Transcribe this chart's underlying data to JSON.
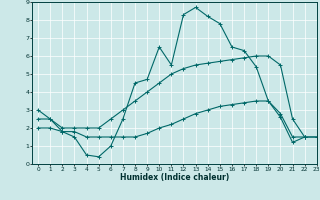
{
  "xlabel": "Humidex (Indice chaleur)",
  "xlim": [
    -0.5,
    23
  ],
  "ylim": [
    0,
    9
  ],
  "xticks": [
    0,
    1,
    2,
    3,
    4,
    5,
    6,
    7,
    8,
    9,
    10,
    11,
    12,
    13,
    14,
    15,
    16,
    17,
    18,
    19,
    20,
    21,
    22,
    23
  ],
  "yticks": [
    0,
    1,
    2,
    3,
    4,
    5,
    6,
    7,
    8,
    9
  ],
  "bg_color": "#cce8e8",
  "line_color": "#006868",
  "grid_color": "#ffffff",
  "line1_x": [
    0,
    1,
    2,
    3,
    4,
    5,
    6,
    7,
    8,
    9,
    10,
    11,
    12,
    13,
    14,
    15,
    16,
    17,
    18,
    19,
    20,
    21,
    22
  ],
  "line1_y": [
    3.0,
    2.5,
    1.8,
    1.5,
    0.5,
    0.4,
    1.0,
    2.5,
    4.5,
    4.7,
    6.5,
    5.5,
    8.3,
    8.7,
    8.2,
    7.8,
    6.5,
    6.3,
    5.4,
    3.5,
    2.6,
    1.2,
    1.5
  ],
  "line2_x": [
    0,
    1,
    2,
    3,
    4,
    5,
    6,
    7,
    8,
    9,
    10,
    11,
    12,
    13,
    14,
    15,
    16,
    17,
    18,
    19,
    20,
    21,
    22,
    23
  ],
  "line2_y": [
    2.0,
    2.0,
    1.8,
    1.8,
    1.5,
    1.5,
    1.5,
    1.5,
    1.5,
    1.7,
    2.0,
    2.2,
    2.5,
    2.8,
    3.0,
    3.2,
    3.3,
    3.4,
    3.5,
    3.5,
    2.8,
    1.5,
    1.5,
    1.5
  ],
  "line3_x": [
    0,
    1,
    2,
    3,
    4,
    5,
    6,
    7,
    8,
    9,
    10,
    11,
    12,
    13,
    14,
    15,
    16,
    17,
    18,
    19,
    20,
    21,
    22,
    23
  ],
  "line3_y": [
    2.5,
    2.5,
    2.0,
    2.0,
    2.0,
    2.0,
    2.5,
    3.0,
    3.5,
    4.0,
    4.5,
    5.0,
    5.3,
    5.5,
    5.6,
    5.7,
    5.8,
    5.9,
    6.0,
    6.0,
    5.5,
    2.5,
    1.5,
    1.5
  ]
}
